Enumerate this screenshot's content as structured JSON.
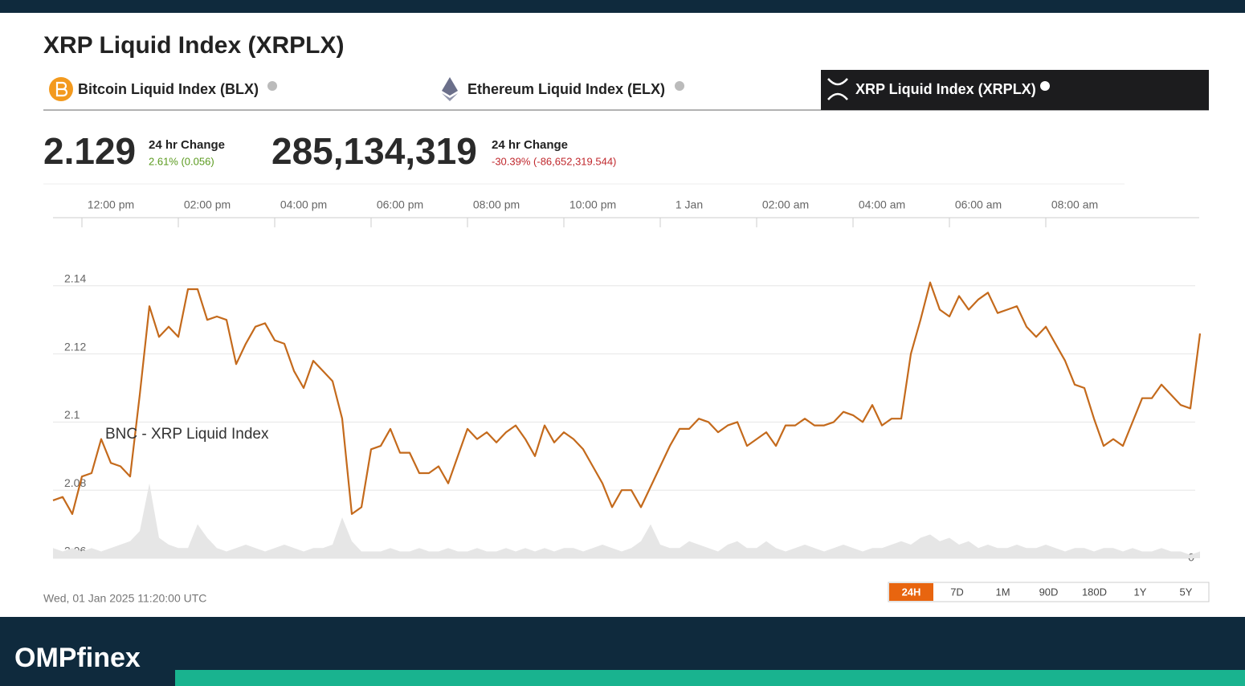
{
  "header": {
    "title": "XRP Liquid Index (XRPLX)"
  },
  "tabs": [
    {
      "label": "Bitcoin Liquid Index (BLX)"
    },
    {
      "label": "Ethereum Liquid Index (ELX)"
    },
    {
      "label": "XRP Liquid Index (XRPLX)"
    }
  ],
  "active_tab": 2,
  "stats": [
    {
      "value": "2.129",
      "label": "24 hr Change",
      "change": "2.61% (0.056)",
      "change_color": "#5a9a1e"
    },
    {
      "value": "285,134,319",
      "label": "24 hr Change",
      "change": "-30.39% (-86,652,319.544)",
      "change_color": "#c0282d"
    }
  ],
  "chart_data": {
    "type": "line",
    "annotation": "BNC - XRP Liquid Index",
    "color": "#c46a1c",
    "grid": true,
    "x": [
      11.4,
      11.6,
      11.8,
      12,
      12.2,
      12.4,
      12.6,
      12.8,
      13,
      13.2,
      13.4,
      13.6,
      13.8,
      14,
      14.2,
      14.4,
      14.6,
      14.8,
      15,
      15.2,
      15.4,
      15.6,
      15.8,
      16,
      16.2,
      16.4,
      16.6,
      16.8,
      17,
      17.2,
      17.4,
      17.6,
      17.8,
      18,
      18.2,
      18.4,
      18.6,
      18.8,
      19,
      19.2,
      19.4,
      19.6,
      19.8,
      20,
      20.2,
      20.4,
      20.6,
      20.8,
      21,
      21.2,
      21.4,
      21.6,
      21.8,
      22,
      22.2,
      22.4,
      22.6,
      22.8,
      23,
      23.2,
      23.4,
      23.6,
      23.8,
      24,
      24.2,
      24.4,
      24.6,
      24.8,
      25,
      25.2,
      25.4,
      25.6,
      25.8,
      26,
      26.2,
      26.4,
      26.6,
      26.8,
      27,
      27.2,
      27.4,
      27.6,
      27.8,
      28,
      28.2,
      28.4,
      28.6,
      28.8,
      29,
      29.2,
      29.4,
      29.6,
      29.8,
      30,
      30.2,
      30.4,
      30.6,
      30.8,
      31,
      31.2,
      31.4,
      31.6,
      31.8,
      32,
      32.2,
      32.4,
      32.6,
      32.8,
      33,
      33.2,
      33.4,
      33.6,
      33.8,
      34,
      34.2,
      34.4,
      34.6,
      34.8,
      35,
      35.2
    ],
    "values": [
      2.077,
      2.078,
      2.073,
      2.084,
      2.085,
      2.095,
      2.088,
      2.087,
      2.084,
      2.108,
      2.134,
      2.125,
      2.128,
      2.125,
      2.139,
      2.139,
      2.13,
      2.131,
      2.13,
      2.117,
      2.123,
      2.128,
      2.129,
      2.124,
      2.123,
      2.115,
      2.11,
      2.118,
      2.115,
      2.112,
      2.101,
      2.073,
      2.075,
      2.092,
      2.093,
      2.098,
      2.091,
      2.091,
      2.085,
      2.085,
      2.087,
      2.082,
      2.09,
      2.098,
      2.095,
      2.097,
      2.094,
      2.097,
      2.099,
      2.095,
      2.09,
      2.099,
      2.094,
      2.097,
      2.095,
      2.092,
      2.087,
      2.082,
      2.075,
      2.08,
      2.08,
      2.075,
      2.081,
      2.087,
      2.093,
      2.098,
      2.098,
      2.101,
      2.1,
      2.097,
      2.099,
      2.1,
      2.093,
      2.095,
      2.097,
      2.093,
      2.099,
      2.099,
      2.101,
      2.099,
      2.099,
      2.1,
      2.103,
      2.102,
      2.1,
      2.105,
      2.099,
      2.101,
      2.101,
      2.12,
      2.13,
      2.141,
      2.133,
      2.131,
      2.137,
      2.133,
      2.136,
      2.138,
      2.132,
      2.133,
      2.134,
      2.128,
      2.125,
      2.128,
      2.123,
      2.118,
      2.111,
      2.11,
      2.101,
      2.093,
      2.095,
      2.093,
      2.1,
      2.107,
      2.107,
      2.111,
      2.108,
      2.105,
      2.104,
      2.126
    ],
    "volume": {
      "color": "#e6e6e6",
      "values": [
        3,
        2,
        3,
        2,
        3,
        2,
        3,
        4,
        5,
        8,
        22,
        6,
        4,
        3,
        3,
        10,
        6,
        3,
        2,
        3,
        4,
        3,
        2,
        3,
        4,
        3,
        2,
        3,
        3,
        4,
        12,
        5,
        2,
        2,
        2,
        3,
        2,
        2,
        3,
        2,
        2,
        3,
        2,
        2,
        3,
        2,
        2,
        3,
        2,
        3,
        2,
        3,
        2,
        3,
        3,
        2,
        3,
        4,
        3,
        2,
        3,
        5,
        10,
        4,
        3,
        3,
        5,
        4,
        3,
        2,
        4,
        5,
        3,
        3,
        5,
        3,
        2,
        3,
        4,
        3,
        2,
        3,
        4,
        3,
        2,
        3,
        3,
        4,
        5,
        4,
        6,
        7,
        5,
        6,
        4,
        5,
        3,
        4,
        3,
        3,
        4,
        3,
        3,
        4,
        3,
        2,
        3,
        3,
        2,
        3,
        3,
        2,
        3,
        2,
        2,
        3,
        2,
        2,
        1,
        2
      ]
    },
    "xlim": [
      11.4,
      35.2
    ],
    "xticks": [
      {
        "value": 12,
        "label": "12:00 pm"
      },
      {
        "value": 14,
        "label": "02:00 pm"
      },
      {
        "value": 16,
        "label": "04:00 pm"
      },
      {
        "value": 18,
        "label": "06:00 pm"
      },
      {
        "value": 20,
        "label": "08:00 pm"
      },
      {
        "value": 22,
        "label": "10:00 pm"
      },
      {
        "value": 24,
        "label": "1 Jan"
      },
      {
        "value": 26,
        "label": "02:00 am"
      },
      {
        "value": 28,
        "label": "04:00 am"
      },
      {
        "value": 30,
        "label": "06:00 am"
      },
      {
        "value": 32,
        "label": "08:00 am"
      }
    ],
    "ylim": [
      2.06,
      2.16
    ],
    "yticks": [
      2.06,
      2.08,
      2.1,
      2.12,
      2.14
    ],
    "y2lim": [
      0,
      100
    ],
    "y2ticks": [
      0
    ]
  },
  "timestamp": "Wed, 01 Jan 2025 11:20:00 UTC",
  "ranges": [
    "24H",
    "7D",
    "1M",
    "90D",
    "180D",
    "1Y",
    "5Y"
  ],
  "active_range": 0,
  "footer": {
    "brand": "OMPfinex"
  }
}
